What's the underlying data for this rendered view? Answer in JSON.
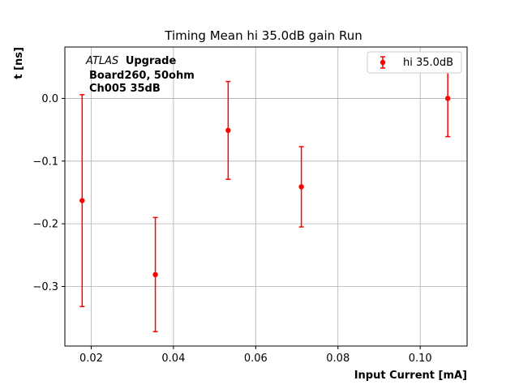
{
  "chart_data": {
    "type": "scatter",
    "title": "Timing Mean hi 35.0dB gain Run",
    "xlabel": "Input Current [mA]",
    "ylabel": "t [ns]",
    "xlim": [
      0.0136,
      0.1114
    ],
    "ylim": [
      -0.395,
      0.082
    ],
    "x_ticks": [
      0.02,
      0.04,
      0.06,
      0.08,
      0.1
    ],
    "x_tick_labels": [
      "0.02",
      "0.04",
      "0.06",
      "0.08",
      "0.10"
    ],
    "y_ticks": [
      -0.3,
      -0.2,
      -0.1,
      0.0
    ],
    "y_tick_labels": [
      "−0.3",
      "−0.2",
      "−0.1",
      "0.0"
    ],
    "grid": true,
    "legend_position": "top-right",
    "series": [
      {
        "name": "hi 35.0dB",
        "color": "#ff0000",
        "x": [
          0.0178,
          0.0356,
          0.0533,
          0.0711,
          0.1067
        ],
        "y": [
          -0.163,
          -0.281,
          -0.051,
          -0.141,
          0.0
        ],
        "yerr": [
          0.169,
          0.091,
          0.078,
          0.064,
          0.061
        ]
      }
    ],
    "annotation": {
      "italic": "ATLAS",
      "bold": "Upgrade",
      "line2": "Board260, 50ohm",
      "line3": "Ch005 35dB"
    }
  }
}
